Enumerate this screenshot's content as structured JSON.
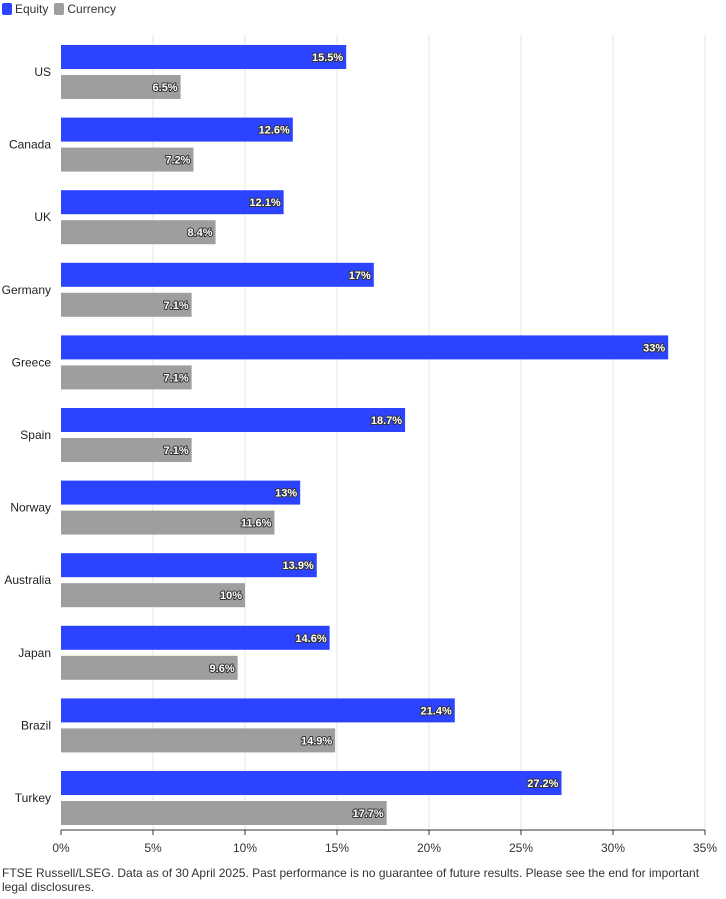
{
  "chart_data": {
    "type": "bar",
    "orientation": "horizontal",
    "categories": [
      "US",
      "Canada",
      "UK",
      "Germany",
      "Greece",
      "Spain",
      "Norway",
      "Australia",
      "Japan",
      "Brazil",
      "Turkey"
    ],
    "series": [
      {
        "name": "Equity",
        "color": "#2c43ff",
        "values": [
          15.5,
          12.6,
          12.1,
          17,
          33,
          18.7,
          13,
          13.9,
          14.6,
          21.4,
          27.2
        ],
        "labels": [
          "15.5%",
          "12.6%",
          "12.1%",
          "17%",
          "33%",
          "18.7%",
          "13%",
          "13.9%",
          "14.6%",
          "21.4%",
          "27.2%"
        ]
      },
      {
        "name": "Currency",
        "color": "#9e9e9e",
        "values": [
          6.5,
          7.2,
          8.4,
          7.1,
          7.1,
          7.1,
          11.6,
          10,
          9.6,
          14.9,
          17.7
        ],
        "labels": [
          "6.5%",
          "7.2%",
          "8.4%",
          "7.1%",
          "7.1%",
          "7.1%",
          "11.6%",
          "10%",
          "9.6%",
          "14.9%",
          "17.7%"
        ]
      }
    ],
    "xlim": [
      0,
      35
    ],
    "xticks": [
      0,
      5,
      10,
      15,
      20,
      25,
      30,
      35
    ],
    "xtick_labels": [
      "0%",
      "5%",
      "10%",
      "15%",
      "20%",
      "25%",
      "30%",
      "35%"
    ],
    "grid": true,
    "legend_position": "top-left"
  },
  "footnote": "FTSE Russell/LSEG. Data as of 30 April 2025. Past performance is no guarantee of future results. Please see the end for important legal disclosures."
}
